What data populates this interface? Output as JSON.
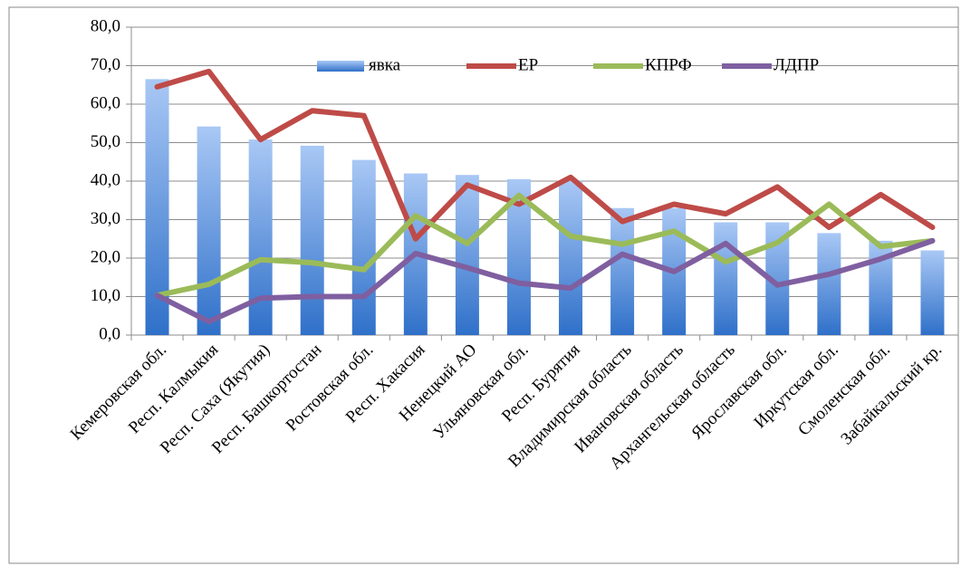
{
  "chart_data": {
    "type": "bar",
    "categories": [
      "Кемеровская обл.",
      "Респ. Калмыкия",
      "Респ. Саха (Якутия)",
      "Респ. Башкортостан",
      "Ростовская обл.",
      "Респ. Хакасия",
      "Ненецкий АО",
      "Ульяновская обл.",
      "Респ. Бурятия",
      "Владимирская область",
      "Ивановская область",
      "Архангельская область",
      "Ярославская обл.",
      "Иркутская обл.",
      "Смоленская обл.",
      "Забайкальский кр."
    ],
    "series": [
      {
        "name": "явка",
        "type": "bar",
        "color": "#4f81bd",
        "values": [
          66.5,
          54.2,
          50.8,
          49.2,
          45.5,
          42.0,
          41.6,
          40.5,
          40.2,
          33.0,
          33.0,
          29.3,
          29.3,
          26.5,
          24.5,
          22.0
        ]
      },
      {
        "name": "ЕР",
        "type": "line",
        "color": "#be4b48",
        "values": [
          64.5,
          68.5,
          50.8,
          58.3,
          57.0,
          25.0,
          39.0,
          34.0,
          41.0,
          29.5,
          34.0,
          31.5,
          38.5,
          28.0,
          36.5,
          28.0
        ]
      },
      {
        "name": "КПРФ",
        "type": "line",
        "color": "#9bbb59",
        "values": [
          10.3,
          13.2,
          19.6,
          18.8,
          17.0,
          31.0,
          23.8,
          36.3,
          25.7,
          23.6,
          27.0,
          19.0,
          24.0,
          34.0,
          23.0,
          24.5
        ]
      },
      {
        "name": "ЛДПР",
        "type": "line",
        "color": "#7f5fa0",
        "values": [
          10.3,
          3.5,
          9.6,
          10.0,
          10.0,
          21.2,
          17.5,
          13.5,
          12.2,
          21.0,
          16.5,
          23.8,
          13.0,
          15.8,
          19.8,
          24.5
        ]
      }
    ],
    "ylim": [
      0,
      80
    ],
    "yticks": [
      {
        "value": 0,
        "label": "0,0"
      },
      {
        "value": 10,
        "label": "10,0"
      },
      {
        "value": 20,
        "label": "20,0"
      },
      {
        "value": 30,
        "label": "30,0"
      },
      {
        "value": 40,
        "label": "40,0"
      },
      {
        "value": 50,
        "label": "50,0"
      },
      {
        "value": 60,
        "label": "60,0"
      },
      {
        "value": 70,
        "label": "70,0"
      },
      {
        "value": 80,
        "label": "80,0"
      }
    ],
    "grid": true
  }
}
